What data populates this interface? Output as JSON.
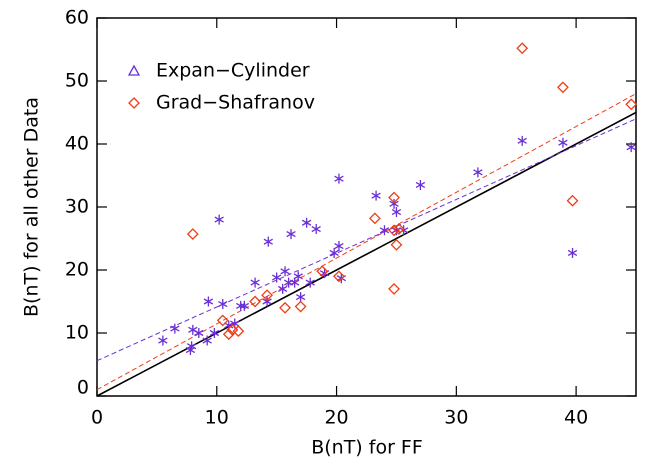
{
  "chart_data": {
    "type": "scatter",
    "xlabel": "B(nT)  for FF",
    "ylabel": "B(nT)  for all other Data",
    "xlim": [
      0,
      45
    ],
    "ylim": [
      0,
      60
    ],
    "xticks": [
      0,
      10,
      20,
      30,
      40
    ],
    "yticks": [
      0,
      10,
      20,
      30,
      40,
      50,
      60
    ],
    "series": [
      {
        "name": "Expan−Cylinder",
        "color": "#6a2fd6",
        "marker": "asterisk",
        "legend_marker": "triangle",
        "x": [
          5.5,
          6.5,
          7.8,
          7.9,
          8,
          8.5,
          9.2,
          9.3,
          9.8,
          10.2,
          10.5,
          11,
          11.5,
          12,
          12.3,
          13.2,
          14.2,
          14.3,
          15,
          15.5,
          15.7,
          16,
          16.2,
          16.5,
          16.8,
          17,
          17.5,
          17.8,
          18.3,
          19,
          19.8,
          20.2,
          20.2,
          20.4,
          23.3,
          24,
          24.8,
          25,
          25,
          25.6,
          27,
          31.8,
          35.5,
          38.9,
          39.7,
          44.6
        ],
        "values": [
          8.8,
          10.7,
          7.3,
          7.9,
          10.5,
          10,
          8.8,
          15,
          10,
          28,
          14.6,
          11.2,
          11.5,
          14.3,
          14.3,
          18,
          15,
          24.5,
          18.8,
          17,
          19.8,
          18,
          25.7,
          18,
          19,
          15.7,
          27.5,
          18,
          26.5,
          19.5,
          22.7,
          23.8,
          34.5,
          18.7,
          31.8,
          26.3,
          30.5,
          29.2,
          26.3,
          26.3,
          33.5,
          35.5,
          40.5,
          40.2,
          22.7,
          39.5
        ]
      },
      {
        "name": "Grad−Shafranov",
        "color": "#f03c14",
        "marker": "diamond",
        "legend_marker": "diamond",
        "x": [
          8,
          10.5,
          11,
          11.3,
          11.8,
          13.2,
          14.2,
          15.7,
          17,
          18.8,
          20.2,
          23.2,
          24.8,
          24.8,
          24.8,
          25,
          25.2,
          35.5,
          38.9,
          39.7,
          44.6
        ],
        "values": [
          25.7,
          12,
          9.8,
          10.5,
          10.3,
          15,
          16,
          14,
          14.2,
          19.8,
          19,
          28.2,
          31.5,
          26.3,
          17,
          24,
          26.5,
          55.2,
          49,
          31,
          46.3
        ]
      }
    ],
    "lines": [
      {
        "color": "#000000",
        "dash": false,
        "x": [
          0,
          45
        ],
        "y": [
          0,
          45
        ]
      },
      {
        "color": "#6a2fd6",
        "dash": true,
        "x": [
          0,
          45
        ],
        "y": [
          5.6,
          44
        ]
      },
      {
        "color": "#f03c14",
        "dash": true,
        "x": [
          0,
          45
        ],
        "y": [
          1,
          48
        ]
      }
    ]
  }
}
